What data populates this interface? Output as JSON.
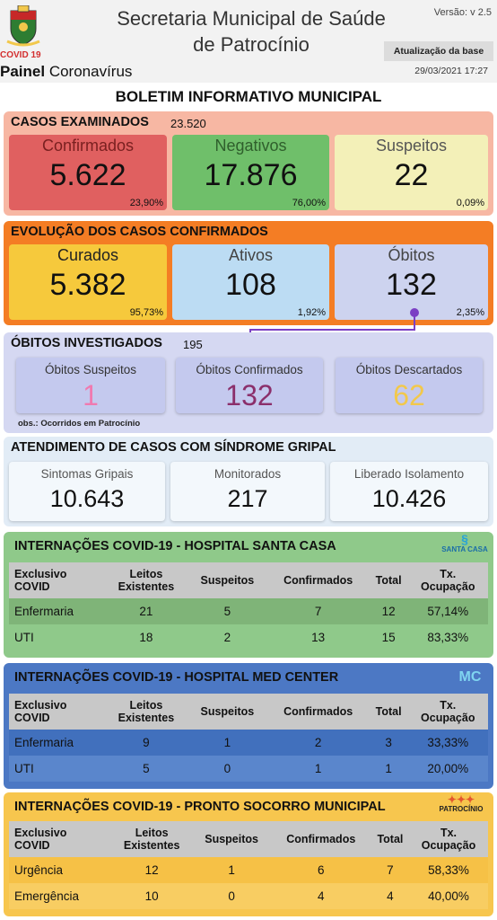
{
  "header": {
    "title_line1": "Secretaria Municipal de Saúde",
    "title_line2": "de Patrocínio",
    "version": "Versão: v 2.5",
    "covid_tag": "COVID 19",
    "painel_bold": "Painel",
    "painel_rest": " Coronavírus",
    "update_label": "Atualização da base",
    "update_date": "29/03/2021 17:27"
  },
  "boletim_title": "BOLETIM INFORMATIVO MUNICIPAL",
  "casos": {
    "title": "CASOS EXAMINADOS",
    "total": "23.520",
    "confirmados": {
      "label": "Confirmados",
      "value": "5.622",
      "pct": "23,90%"
    },
    "negativos": {
      "label": "Negativos",
      "value": "17.876",
      "pct": "76,00%"
    },
    "suspeitos": {
      "label": "Suspeitos",
      "value": "22",
      "pct": "0,09%"
    }
  },
  "evolucao": {
    "title": "EVOLUÇÃO DOS CASOS CONFIRMADOS",
    "curados": {
      "label": "Curados",
      "value": "5.382",
      "pct": "95,73%"
    },
    "ativos": {
      "label": "Ativos",
      "value": "108",
      "pct": "1,92%"
    },
    "obitos": {
      "label": "Óbitos",
      "value": "132",
      "pct": "2,35%"
    }
  },
  "obitos_inv": {
    "title": "ÓBITOS INVESTIGADOS",
    "total": "195",
    "suspeitos": {
      "label": "Óbitos Suspeitos",
      "value": "1"
    },
    "confirmados": {
      "label": "Óbitos Confirmados",
      "value": "132"
    },
    "descartados": {
      "label": "Óbitos Descartados",
      "value": "62"
    },
    "obs": "obs.: Ocorridos em Patrocínio"
  },
  "gripal": {
    "title": "ATENDIMENTO DE CASOS COM SÍNDROME GRIPAL",
    "sintomas": {
      "label": "Sintomas Gripais",
      "value": "10.643"
    },
    "monitorados": {
      "label": "Monitorados",
      "value": "217"
    },
    "liberado": {
      "label": "Liberado Isolamento",
      "value": "10.426"
    }
  },
  "table_headers": {
    "col1_line1": "Exclusivo",
    "col1_line2": "COVID",
    "col2_line1": "Leitos",
    "col2_line2": "Existentes",
    "col3": "Suspeitos",
    "col4": "Confirmados",
    "col5": "Total",
    "col6_line1": "Tx.",
    "col6_line2": "Ocupação"
  },
  "santa_casa": {
    "title": "INTERNAÇÕES COVID-19 - HOSPITAL SANTA CASA",
    "logo_text": "SANTA CASA",
    "rows": [
      {
        "name": "Enfermaria",
        "leitos": "21",
        "suspeitos": "5",
        "confirmados": "7",
        "total": "12",
        "tx": "57,14%"
      },
      {
        "name": "UTI",
        "leitos": "18",
        "suspeitos": "2",
        "confirmados": "13",
        "total": "15",
        "tx": "83,33%"
      }
    ]
  },
  "med_center": {
    "title": "INTERNAÇÕES COVID-19 - HOSPITAL MED CENTER",
    "logo_text": "MC",
    "rows": [
      {
        "name": "Enfermaria",
        "leitos": "9",
        "suspeitos": "1",
        "confirmados": "2",
        "total": "3",
        "tx": "33,33%"
      },
      {
        "name": "UTI",
        "leitos": "5",
        "suspeitos": "0",
        "confirmados": "1",
        "total": "1",
        "tx": "20,00%"
      }
    ]
  },
  "pronto_socorro": {
    "title": "INTERNAÇÕES COVID-19 - PRONTO SOCORRO MUNICIPAL",
    "logo_text": "PATROCÍNIO",
    "rows": [
      {
        "name": "Urgência",
        "leitos": "12",
        "suspeitos": "1",
        "confirmados": "6",
        "total": "7",
        "tx": "58,33%"
      },
      {
        "name": "Emergência",
        "leitos": "10",
        "suspeitos": "0",
        "confirmados": "4",
        "total": "4",
        "tx": "40,00%"
      }
    ]
  },
  "colors": {
    "confirmados": "#e06060",
    "negativos": "#6fbf6a",
    "suspeitos": "#f3f0b8",
    "evolucao_bg": "#f47d24",
    "curados": "#f6c93c",
    "ativos": "#bcdcf3",
    "obitos": "#cdd3ef",
    "obito_confirmado": "#8b2f6b",
    "obito_descartado": "#f2c84b",
    "obito_suspeito": "#f07ab0"
  }
}
